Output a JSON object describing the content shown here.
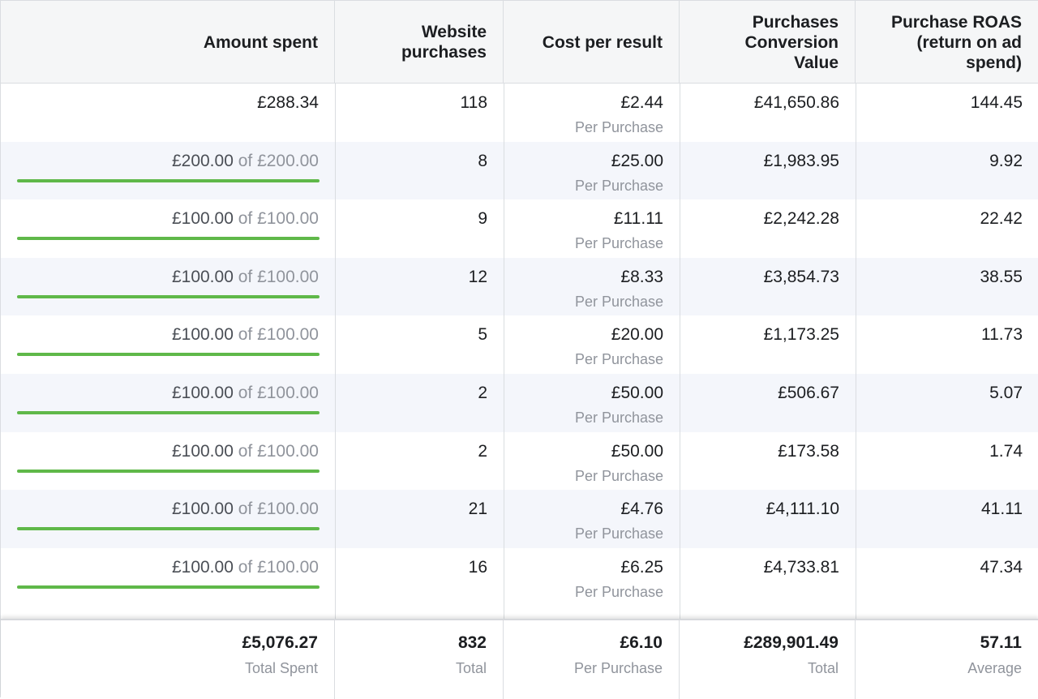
{
  "columns": [
    {
      "label": "Amount spent"
    },
    {
      "label": "Website\npurchases"
    },
    {
      "label": "Cost per result"
    },
    {
      "label": "Purchases\nConversion\nValue"
    },
    {
      "label": "Purchase ROAS\n(return on ad\nspend)"
    }
  ],
  "budget_separator": "of",
  "cost_suffix": "Per Purchase",
  "colors": {
    "budget_bar": "#5fb849",
    "header_bg": "#f5f6f7",
    "alt_row_bg": "#f4f6fb"
  },
  "rows": [
    {
      "spent": "£288.34",
      "budget": "",
      "budget_progress": null,
      "purchases": "118",
      "cost": "£2.44",
      "cost_label": "Per Purchase",
      "value": "£41,650.86",
      "roas": "144.45"
    },
    {
      "spent": "£200.00",
      "budget": "£200.00",
      "budget_progress": 1.0,
      "purchases": "8",
      "cost": "£25.00",
      "cost_label": "Per Purchase",
      "value": "£1,983.95",
      "roas": "9.92"
    },
    {
      "spent": "£100.00",
      "budget": "£100.00",
      "budget_progress": 1.0,
      "purchases": "9",
      "cost": "£11.11",
      "cost_label": "Per Purchase",
      "value": "£2,242.28",
      "roas": "22.42"
    },
    {
      "spent": "£100.00",
      "budget": "£100.00",
      "budget_progress": 1.0,
      "purchases": "12",
      "cost": "£8.33",
      "cost_label": "Per Purchase",
      "value": "£3,854.73",
      "roas": "38.55"
    },
    {
      "spent": "£100.00",
      "budget": "£100.00",
      "budget_progress": 1.0,
      "purchases": "5",
      "cost": "£20.00",
      "cost_label": "Per Purchase",
      "value": "£1,173.25",
      "roas": "11.73"
    },
    {
      "spent": "£100.00",
      "budget": "£100.00",
      "budget_progress": 1.0,
      "purchases": "2",
      "cost": "£50.00",
      "cost_label": "Per Purchase",
      "value": "£506.67",
      "roas": "5.07"
    },
    {
      "spent": "£100.00",
      "budget": "£100.00",
      "budget_progress": 1.0,
      "purchases": "2",
      "cost": "£50.00",
      "cost_label": "Per Purchase",
      "value": "£173.58",
      "roas": "1.74"
    },
    {
      "spent": "£100.00",
      "budget": "£100.00",
      "budget_progress": 1.0,
      "purchases": "21",
      "cost": "£4.76",
      "cost_label": "Per Purchase",
      "value": "£4,111.10",
      "roas": "41.11"
    },
    {
      "spent": "£100.00",
      "budget": "£100.00",
      "budget_progress": 1.0,
      "purchases": "16",
      "cost": "£6.25",
      "cost_label": "Per Purchase",
      "value": "£4,733.81",
      "roas": "47.34"
    }
  ],
  "totals": {
    "spent": "£5,076.27",
    "spent_label": "Total Spent",
    "purchases": "832",
    "purchases_label": "Total",
    "cost": "£6.10",
    "cost_label": "Per Purchase",
    "value": "£289,901.49",
    "value_label": "Total",
    "roas": "57.11",
    "roas_label": "Average"
  }
}
